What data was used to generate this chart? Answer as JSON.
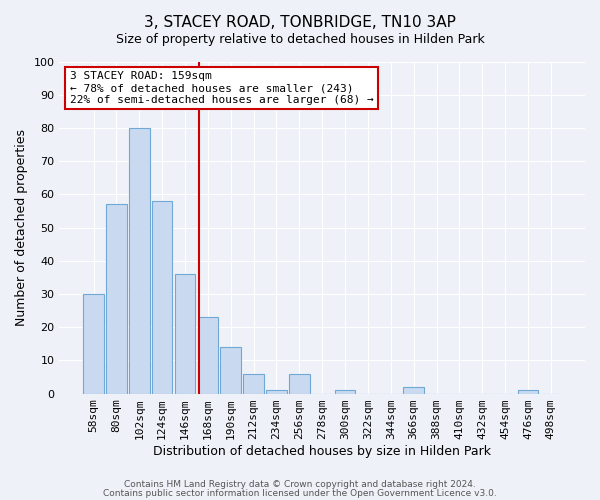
{
  "title": "3, STACEY ROAD, TONBRIDGE, TN10 3AP",
  "subtitle": "Size of property relative to detached houses in Hilden Park",
  "xlabel": "Distribution of detached houses by size in Hilden Park",
  "ylabel": "Number of detached properties",
  "footer_line1": "Contains HM Land Registry data © Crown copyright and database right 2024.",
  "footer_line2": "Contains public sector information licensed under the Open Government Licence v3.0.",
  "bar_labels": [
    "58sqm",
    "80sqm",
    "102sqm",
    "124sqm",
    "146sqm",
    "168sqm",
    "190sqm",
    "212sqm",
    "234sqm",
    "256sqm",
    "278sqm",
    "300sqm",
    "322sqm",
    "344sqm",
    "366sqm",
    "388sqm",
    "410sqm",
    "432sqm",
    "454sqm",
    "476sqm",
    "498sqm"
  ],
  "bar_values": [
    30,
    57,
    80,
    58,
    36,
    23,
    14,
    6,
    1,
    6,
    0,
    1,
    0,
    0,
    2,
    0,
    0,
    0,
    0,
    1,
    0
  ],
  "bar_color": "#c9daf0",
  "bar_edge_color": "#6fa8d4",
  "ylim": [
    0,
    100
  ],
  "vline_label": "3 STACEY ROAD: 159sqm",
  "annotation_line1": "← 78% of detached houses are smaller (243)",
  "annotation_line2": "22% of semi-detached houses are larger (68) →",
  "annotation_box_color": "#ffffff",
  "annotation_box_edge_color": "#cc0000",
  "vline_color": "#cc0000",
  "background_color": "#eef2f8",
  "plot_background_color": "#eef2f8",
  "grid_color": "#ffffff",
  "title_fontsize": 11,
  "subtitle_fontsize": 9,
  "tick_fontsize": 8,
  "ylabel_fontsize": 9,
  "xlabel_fontsize": 9,
  "annotation_fontsize": 8,
  "footer_fontsize": 6.5
}
